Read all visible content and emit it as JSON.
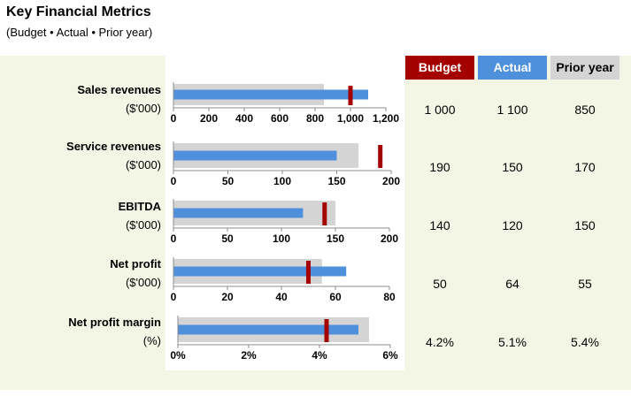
{
  "title": "Key Financial Metrics",
  "subtitle": "(Budget • Actual • Prior year)",
  "legend": [
    {
      "label": "Budget",
      "color": "#a40000",
      "text_color": "#ffffff"
    },
    {
      "label": "Actual",
      "color": "#4f90dd",
      "text_color": "#ffffff"
    },
    {
      "label": "Prior year",
      "color": "#d4d4d4",
      "text_color": "#000000"
    }
  ],
  "rows": [
    {
      "label": "Sales revenues",
      "unit": "($'000)",
      "budget": "1 000",
      "actual": "1 100",
      "prior": "850"
    },
    {
      "label": "Service revenues",
      "unit": "($'000)",
      "budget": "190",
      "actual": "150",
      "prior": "170"
    },
    {
      "label": "EBITDA",
      "unit": "($'000)",
      "budget": "140",
      "actual": "120",
      "prior": "150"
    },
    {
      "label": "Net profit",
      "unit": "($'000)",
      "budget": "50",
      "actual": "64",
      "prior": "55"
    },
    {
      "label": "Net profit margin",
      "unit": "(%)",
      "budget": "4.2%",
      "actual": "5.1%",
      "prior": "5.4%"
    }
  ],
  "chart_data": [
    {
      "type": "bar",
      "subtype": "bullet",
      "category": "Sales revenues",
      "budget": 1000,
      "actual": 1100,
      "prior": 850,
      "xlim": [
        0,
        1200
      ],
      "ticks": [
        "0",
        "200",
        "400",
        "600",
        "800",
        "1,000",
        "1,200"
      ]
    },
    {
      "type": "bar",
      "subtype": "bullet",
      "category": "Service revenues",
      "budget": 190,
      "actual": 150,
      "prior": 170,
      "xlim": [
        0,
        200
      ],
      "ticks": [
        "0",
        "50",
        "100",
        "150",
        "200"
      ]
    },
    {
      "type": "bar",
      "subtype": "bullet",
      "category": "EBITDA",
      "budget": 140,
      "actual": 120,
      "prior": 150,
      "xlim": [
        0,
        200
      ],
      "ticks": [
        "0",
        "50",
        "100",
        "150",
        "200"
      ]
    },
    {
      "type": "bar",
      "subtype": "bullet",
      "category": "Net profit",
      "budget": 50,
      "actual": 64,
      "prior": 55,
      "xlim": [
        0,
        80
      ],
      "ticks": [
        "0",
        "20",
        "40",
        "60",
        "80"
      ]
    },
    {
      "type": "bar",
      "subtype": "bullet",
      "category": "Net profit margin",
      "budget": 4.2,
      "actual": 5.1,
      "prior": 5.4,
      "xlim": [
        0,
        6
      ],
      "ticks": [
        "0%",
        "2%",
        "4%",
        "6%"
      ]
    }
  ]
}
